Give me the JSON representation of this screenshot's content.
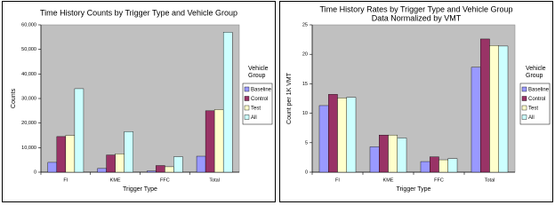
{
  "chart_data": [
    {
      "type": "bar",
      "title": "Time History Counts by Trigger Type and Vehicle Group",
      "x_label": "Trigger Type",
      "y_label": "Counts",
      "legend_title": "Vehicle Group",
      "categories": [
        "FI",
        "KME",
        "FFC",
        "Total"
      ],
      "series": [
        {
          "name": "Baseline",
          "color": "#9999ff",
          "values": [
            4000,
            1500,
            500,
            6500
          ]
        },
        {
          "name": "Control",
          "color": "#993366",
          "values": [
            14500,
            7000,
            2700,
            25000
          ]
        },
        {
          "name": "Test",
          "color": "#ffffcc",
          "values": [
            15000,
            7500,
            2200,
            25500
          ]
        },
        {
          "name": "All",
          "color": "#ccffff",
          "values": [
            34000,
            16500,
            6300,
            57000
          ]
        }
      ],
      "ylim": [
        0,
        60000
      ],
      "yticks": [
        0,
        {
          "value": 10000,
          "label": "10,000"
        },
        {
          "value": 20000,
          "label": "20,000"
        },
        {
          "value": 30000,
          "label": "30,000"
        },
        {
          "value": 40000,
          "label": "40,000"
        },
        {
          "value": 50000,
          "label": "50,000"
        },
        {
          "value": 60000,
          "label": "60,000"
        }
      ]
    },
    {
      "type": "bar",
      "title": "Time History Rates by Trigger Type and Vehicle Group",
      "subtitle": "Data Normalized by VMT",
      "x_label": "Trigger Type",
      "y_label": "Count per 1K VMT",
      "legend_title": "Vehicle Group",
      "categories": [
        "FI",
        "KME",
        "FFC",
        "Total"
      ],
      "series": [
        {
          "name": "Baseline",
          "color": "#9999ff",
          "values": [
            11.3,
            4.3,
            1.8,
            17.8
          ]
        },
        {
          "name": "Control",
          "color": "#993366",
          "values": [
            13.2,
            6.3,
            2.6,
            22.6
          ]
        },
        {
          "name": "Test",
          "color": "#ffffcc",
          "values": [
            12.6,
            6.3,
            2.1,
            21.5
          ]
        },
        {
          "name": "All",
          "color": "#ccffff",
          "values": [
            12.7,
            5.8,
            2.3,
            21.4
          ]
        }
      ],
      "ylim": [
        0,
        25
      ],
      "yticks": [
        0,
        5,
        10,
        15,
        20,
        25
      ]
    }
  ]
}
